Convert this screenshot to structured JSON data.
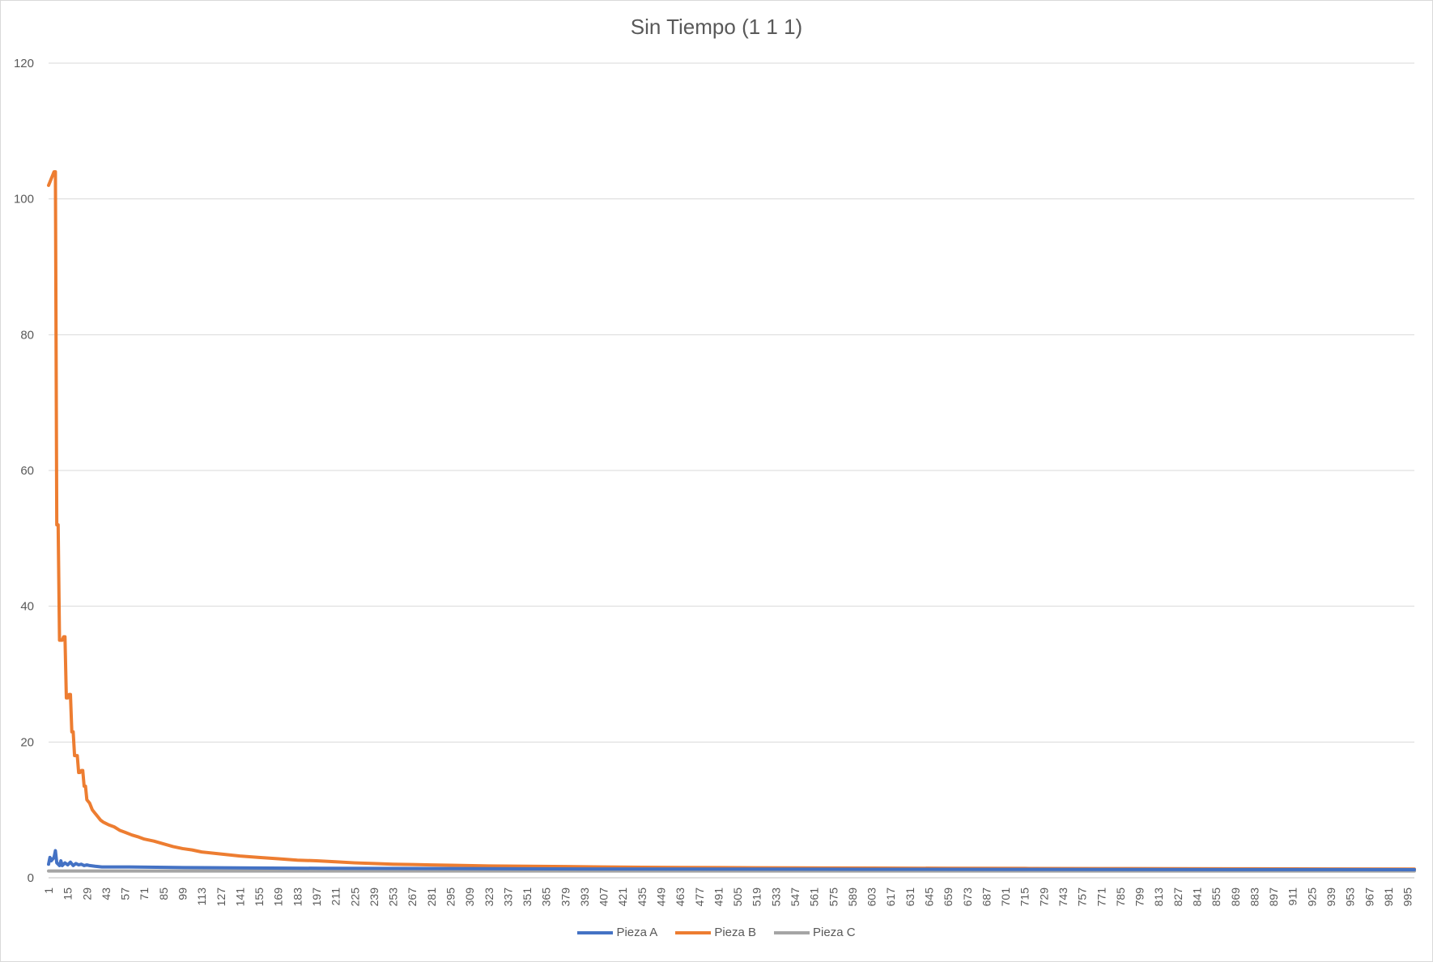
{
  "chart_data": {
    "type": "line",
    "title": "Sin Tiempo (1 1 1)",
    "xlabel": "",
    "ylabel": "",
    "ylim": [
      0,
      120
    ],
    "yticks": [
      0,
      20,
      40,
      60,
      80,
      100,
      120
    ],
    "x_start": 1,
    "x_end": 1000,
    "x_tick_start": 1,
    "x_tick_step": 14,
    "grid": true,
    "legend_position": "bottom",
    "series": [
      {
        "name": "Pieza A",
        "color": "#4472C4",
        "points": [
          [
            1,
            2.0
          ],
          [
            2,
            3.0
          ],
          [
            3,
            2.5
          ],
          [
            5,
            3.0
          ],
          [
            6,
            4.0
          ],
          [
            7,
            2.2
          ],
          [
            8,
            2.0
          ],
          [
            9,
            1.8
          ],
          [
            10,
            2.5
          ],
          [
            11,
            1.8
          ],
          [
            13,
            2.2
          ],
          [
            15,
            1.9
          ],
          [
            17,
            2.3
          ],
          [
            19,
            1.8
          ],
          [
            21,
            2.1
          ],
          [
            23,
            1.9
          ],
          [
            25,
            2.0
          ],
          [
            27,
            1.8
          ],
          [
            29,
            1.9
          ],
          [
            31,
            1.8
          ],
          [
            35,
            1.7
          ],
          [
            40,
            1.6
          ],
          [
            50,
            1.6
          ],
          [
            60,
            1.6
          ],
          [
            80,
            1.55
          ],
          [
            100,
            1.5
          ],
          [
            150,
            1.45
          ],
          [
            200,
            1.4
          ],
          [
            300,
            1.35
          ],
          [
            400,
            1.3
          ],
          [
            500,
            1.28
          ],
          [
            600,
            1.26
          ],
          [
            700,
            1.24
          ],
          [
            800,
            1.22
          ],
          [
            900,
            1.21
          ],
          [
            1000,
            1.2
          ]
        ]
      },
      {
        "name": "Pieza B",
        "color": "#ED7D31",
        "points": [
          [
            1,
            102
          ],
          [
            2,
            102.5
          ],
          [
            3,
            103
          ],
          [
            4,
            103.5
          ],
          [
            5,
            104
          ],
          [
            6,
            104
          ],
          [
            7,
            52
          ],
          [
            8,
            52
          ],
          [
            9,
            35
          ],
          [
            10,
            35
          ],
          [
            11,
            35
          ],
          [
            12,
            35.5
          ],
          [
            13,
            35.5
          ],
          [
            14,
            26.5
          ],
          [
            15,
            26.5
          ],
          [
            16,
            27
          ],
          [
            17,
            27
          ],
          [
            18,
            21.5
          ],
          [
            19,
            21.5
          ],
          [
            20,
            18
          ],
          [
            21,
            18
          ],
          [
            22,
            18
          ],
          [
            23,
            15.5
          ],
          [
            24,
            15.5
          ],
          [
            25,
            15.8
          ],
          [
            26,
            15.8
          ],
          [
            27,
            13.5
          ],
          [
            28,
            13.5
          ],
          [
            29,
            11.5
          ],
          [
            31,
            11
          ],
          [
            33,
            10
          ],
          [
            35,
            9.5
          ],
          [
            37,
            9
          ],
          [
            39,
            8.5
          ],
          [
            41,
            8.2
          ],
          [
            43,
            8
          ],
          [
            45,
            7.8
          ],
          [
            49,
            7.5
          ],
          [
            53,
            7
          ],
          [
            57,
            6.7
          ],
          [
            62,
            6.3
          ],
          [
            67,
            6
          ],
          [
            71,
            5.7
          ],
          [
            78,
            5.4
          ],
          [
            85,
            5
          ],
          [
            92,
            4.6
          ],
          [
            99,
            4.3
          ],
          [
            106,
            4.1
          ],
          [
            113,
            3.8
          ],
          [
            127,
            3.5
          ],
          [
            141,
            3.2
          ],
          [
            155,
            3
          ],
          [
            169,
            2.8
          ],
          [
            183,
            2.6
          ],
          [
            197,
            2.5
          ],
          [
            211,
            2.35
          ],
          [
            225,
            2.2
          ],
          [
            239,
            2.1
          ],
          [
            253,
            2
          ],
          [
            267,
            1.95
          ],
          [
            281,
            1.9
          ],
          [
            295,
            1.85
          ],
          [
            323,
            1.75
          ],
          [
            351,
            1.7
          ],
          [
            379,
            1.65
          ],
          [
            407,
            1.6
          ],
          [
            435,
            1.55
          ],
          [
            463,
            1.52
          ],
          [
            491,
            1.5
          ],
          [
            519,
            1.48
          ],
          [
            547,
            1.46
          ],
          [
            603,
            1.43
          ],
          [
            659,
            1.4
          ],
          [
            715,
            1.38
          ],
          [
            771,
            1.36
          ],
          [
            827,
            1.34
          ],
          [
            883,
            1.32
          ],
          [
            939,
            1.3
          ],
          [
            1000,
            1.28
          ]
        ]
      },
      {
        "name": "Pieza C",
        "color": "#A5A5A5",
        "points": [
          [
            1,
            1
          ],
          [
            1000,
            1
          ]
        ]
      }
    ]
  }
}
